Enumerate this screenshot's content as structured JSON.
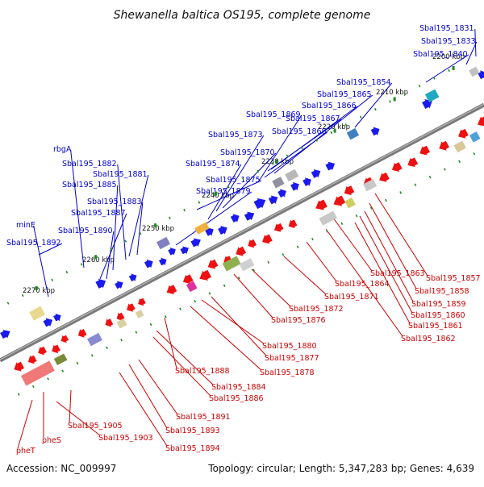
{
  "title": "Shewanella baltica OS195, complete genome",
  "footer": {
    "accession": "Accession: NC_009997",
    "topology": "Topology: circular; Length: 5,347,283 bp; Genes: 4,639"
  },
  "colors": {
    "backbone": "#7a7a7a",
    "forward_label": "#0000cc",
    "reverse_label": "#cc0000",
    "forward_gene": "#1a1aee",
    "reverse_gene": "#ee1111",
    "tick": "#228b22"
  },
  "ticks": [
    {
      "label": "2200 kbp"
    },
    {
      "label": "2210 kbp"
    },
    {
      "label": "2220 kbp"
    },
    {
      "label": "2230 kbp"
    },
    {
      "label": "2240 kbp"
    },
    {
      "label": "2250 kbp"
    },
    {
      "label": "2260 kbp"
    },
    {
      "label": "2270 kbp"
    }
  ],
  "forward_labels": [
    "Sbal195_1831",
    "Sbal195_1833",
    "Sbal195_1840",
    "Sbal195_1854",
    "Sbal195_1865",
    "Sbal195_1866",
    "Sbal195_1867",
    "Sbal195_1868",
    "Sbal195_1869",
    "Sbal195_1873",
    "Sbal195_1870",
    "Sbal195_1874",
    "Sbal195_1875",
    "Sbal195_1879",
    "rbgA",
    "Sbal195_1882",
    "Sbal195_1881",
    "Sbal195_1885",
    "Sbal195_1883",
    "Sbal195_1887",
    "minE",
    "Sbal195_1890",
    "Sbal195_1892"
  ],
  "reverse_labels": [
    "Sbal195_1857",
    "Sbal195_1858",
    "Sbal195_1859",
    "Sbal195_1860",
    "Sbal195_1861",
    "Sbal195_1862",
    "Sbal195_1863",
    "Sbal195_1864",
    "Sbal195_1871",
    "Sbal195_1872",
    "Sbal195_1876",
    "Sbal195_1880",
    "Sbal195_1877",
    "Sbal195_1878",
    "Sbal195_1888",
    "Sbal195_1884",
    "Sbal195_1886",
    "Sbal195_1891",
    "Sbal195_1893",
    "Sbal195_1894",
    "Sbal195_1905",
    "Sbal195_1903",
    "pheS",
    "pheT"
  ]
}
